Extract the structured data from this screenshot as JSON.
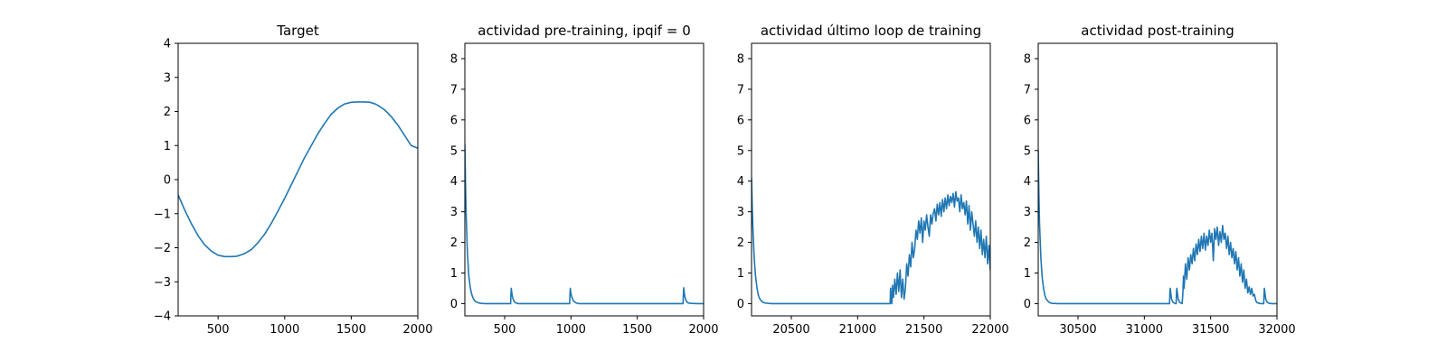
{
  "figure": {
    "background": "#ffffff",
    "line_color": "#1f77b4"
  },
  "chart_data": [
    {
      "type": "line",
      "title": "Target",
      "xlabel": "",
      "ylabel": "",
      "xlim": [
        200,
        2000
      ],
      "ylim": [
        -4,
        4
      ],
      "xticks": [
        500,
        1000,
        1500,
        2000
      ],
      "yticks": [
        -4,
        -3,
        -2,
        -1,
        0,
        1,
        2,
        3,
        4
      ],
      "grid": false,
      "series": [
        {
          "x": [
            200,
            250,
            300,
            350,
            400,
            450,
            500,
            550,
            600,
            640,
            680,
            700,
            750,
            800,
            850,
            900,
            950,
            1000,
            1050,
            1100,
            1150,
            1200,
            1250,
            1300,
            1350,
            1400,
            1450,
            1500,
            1550,
            1600,
            1640,
            1680,
            1700,
            1750,
            1800,
            1850,
            1900,
            1950,
            2000
          ],
          "y": [
            -0.45,
            -0.9,
            -1.3,
            -1.65,
            -1.92,
            -2.1,
            -2.22,
            -2.26,
            -2.26,
            -2.25,
            -2.2,
            -2.17,
            -2.05,
            -1.85,
            -1.6,
            -1.28,
            -0.92,
            -0.55,
            -0.15,
            0.25,
            0.65,
            1.0,
            1.35,
            1.65,
            1.92,
            2.1,
            2.22,
            2.27,
            2.28,
            2.28,
            2.27,
            2.22,
            2.18,
            2.05,
            1.85,
            1.6,
            1.3,
            1.0,
            0.92
          ]
        }
      ]
    },
    {
      "type": "line",
      "title": "actividad pre-training, ipqif = 0",
      "xlabel": "",
      "ylabel": "",
      "xlim": [
        200,
        2000
      ],
      "ylim": [
        -0.4,
        8.5
      ],
      "xticks": [
        500,
        1000,
        1500,
        2000
      ],
      "yticks": [
        0,
        1,
        2,
        3,
        4,
        5,
        6,
        7,
        8
      ],
      "grid": false,
      "series": [
        {
          "x": [
            200,
            205,
            210,
            215,
            220,
            230,
            240,
            250,
            260,
            270,
            280,
            300,
            320,
            350,
            400,
            450,
            500,
            545,
            548,
            550,
            555,
            560,
            570,
            580,
            600,
            650,
            700,
            800,
            900,
            990,
            993,
            995,
            1000,
            1010,
            1020,
            1040,
            1060,
            1100,
            1200,
            1300,
            1400,
            1500,
            1600,
            1700,
            1800,
            1845,
            1848,
            1850,
            1855,
            1860,
            1870,
            1880,
            1900,
            1950,
            2000
          ],
          "y": [
            5.2,
            3.9,
            2.9,
            2.2,
            1.6,
            0.9,
            0.55,
            0.33,
            0.2,
            0.12,
            0.07,
            0.03,
            0.01,
            0.0,
            0.0,
            0.0,
            0.0,
            0.0,
            0.35,
            0.5,
            0.32,
            0.2,
            0.08,
            0.03,
            0.0,
            0.0,
            0.0,
            0.0,
            0.0,
            0.0,
            0.35,
            0.5,
            0.32,
            0.17,
            0.08,
            0.02,
            0.0,
            0.0,
            0.0,
            0.0,
            0.0,
            0.0,
            0.0,
            0.0,
            0.0,
            0.0,
            0.35,
            0.52,
            0.33,
            0.2,
            0.08,
            0.03,
            0.01,
            0.0,
            0.0
          ]
        }
      ]
    },
    {
      "type": "line",
      "title": "actividad último loop de training",
      "xlabel": "",
      "ylabel": "",
      "xlim": [
        20200,
        22000
      ],
      "ylim": [
        -0.4,
        8.5
      ],
      "xticks": [
        20500,
        21000,
        21500,
        22000
      ],
      "yticks": [
        0,
        1,
        2,
        3,
        4,
        5,
        6,
        7,
        8
      ],
      "grid": false,
      "series": [
        {
          "x": [
            20200,
            20205,
            20210,
            20220,
            20230,
            20240,
            20250,
            20260,
            20280,
            20300,
            20350,
            20400,
            20600,
            20800,
            21000,
            21200,
            21240,
            21245,
            21248,
            21250,
            21258,
            21262,
            21270,
            21280,
            21290,
            21300,
            21310,
            21320,
            21330,
            21340,
            21350,
            21360,
            21370,
            21380,
            21390,
            21400,
            21410,
            21420,
            21430,
            21440,
            21450,
            21460,
            21470,
            21480,
            21490,
            21500,
            21510,
            21520,
            21530,
            21540,
            21550,
            21560,
            21570,
            21580,
            21590,
            21600,
            21610,
            21620,
            21630,
            21640,
            21650,
            21660,
            21670,
            21680,
            21690,
            21700,
            21710,
            21720,
            21730,
            21740,
            21750,
            21760,
            21770,
            21780,
            21790,
            21800,
            21810,
            21820,
            21830,
            21840,
            21850,
            21860,
            21870,
            21880,
            21890,
            21900,
            21910,
            21920,
            21930,
            21940,
            21950,
            21960,
            21970,
            21980,
            21990,
            22000
          ],
          "y": [
            4.1,
            3.2,
            2.5,
            1.5,
            0.9,
            0.55,
            0.3,
            0.17,
            0.06,
            0.02,
            0.0,
            0.0,
            0.0,
            0.0,
            0.0,
            0.0,
            0.0,
            0.0,
            0.5,
            0.2,
            0.0,
            0.6,
            0.2,
            0.8,
            0.3,
            1.0,
            0.4,
            1.1,
            0.2,
            0.8,
            0.15,
            0.5,
            1.3,
            0.9,
            1.6,
            1.2,
            2.0,
            1.5,
            1.8,
            2.4,
            2.1,
            2.7,
            2.3,
            2.8,
            2.0,
            2.7,
            2.4,
            2.9,
            2.5,
            2.2,
            2.9,
            2.6,
            2.95,
            3.1,
            2.7,
            3.25,
            2.9,
            3.3,
            2.85,
            3.4,
            3.0,
            3.45,
            3.1,
            3.55,
            3.2,
            3.5,
            3.3,
            3.6,
            3.15,
            3.65,
            3.35,
            3.45,
            3.0,
            3.55,
            3.1,
            3.3,
            2.9,
            3.35,
            2.6,
            3.2,
            2.4,
            3.0,
            2.6,
            2.2,
            2.7,
            2.0,
            2.5,
            1.8,
            2.4,
            1.6,
            2.1,
            1.5,
            2.2,
            1.3,
            1.9,
            1.1
          ]
        }
      ]
    },
    {
      "type": "line",
      "title": "actividad post-training",
      "xlabel": "",
      "ylabel": "",
      "xlim": [
        30200,
        32000
      ],
      "ylim": [
        -0.4,
        8.5
      ],
      "xticks": [
        30500,
        31000,
        31500,
        32000
      ],
      "yticks": [
        0,
        1,
        2,
        3,
        4,
        5,
        6,
        7,
        8
      ],
      "grid": false,
      "series": [
        {
          "x": [
            30200,
            30205,
            30210,
            30220,
            30230,
            30240,
            30250,
            30260,
            30280,
            30300,
            30350,
            30400,
            30600,
            30800,
            31000,
            31150,
            31190,
            31193,
            31195,
            31205,
            31215,
            31225,
            31235,
            31240,
            31243,
            31245,
            31255,
            31265,
            31275,
            31285,
            31290,
            31295,
            31300,
            31310,
            31320,
            31330,
            31340,
            31350,
            31360,
            31370,
            31380,
            31390,
            31400,
            31410,
            31420,
            31430,
            31440,
            31450,
            31460,
            31470,
            31480,
            31490,
            31500,
            31510,
            31520,
            31530,
            31540,
            31550,
            31560,
            31570,
            31580,
            31590,
            31600,
            31610,
            31620,
            31630,
            31640,
            31650,
            31660,
            31670,
            31680,
            31690,
            31700,
            31710,
            31720,
            31730,
            31740,
            31750,
            31760,
            31770,
            31780,
            31790,
            31800,
            31810,
            31820,
            31830,
            31840,
            31850,
            31880,
            31900,
            31903,
            31905,
            31915,
            31925,
            31940,
            31960,
            31980,
            32000
          ],
          "y": [
            5.0,
            3.6,
            2.6,
            1.5,
            0.85,
            0.5,
            0.28,
            0.15,
            0.05,
            0.01,
            0.0,
            0.0,
            0.0,
            0.0,
            0.0,
            0.0,
            0.0,
            0.4,
            0.5,
            0.15,
            0.05,
            0.02,
            0.0,
            0.0,
            0.4,
            0.5,
            0.15,
            0.05,
            0.02,
            0.0,
            0.3,
            0.9,
            0.5,
            1.3,
            0.8,
            1.5,
            1.1,
            1.6,
            1.3,
            1.8,
            1.4,
            1.95,
            1.6,
            2.1,
            1.7,
            2.2,
            1.8,
            2.3,
            1.75,
            2.2,
            1.9,
            2.4,
            2.0,
            2.3,
            1.4,
            2.45,
            2.1,
            2.5,
            1.9,
            2.35,
            2.0,
            2.55,
            2.1,
            2.3,
            1.8,
            2.2,
            1.6,
            2.0,
            1.5,
            1.8,
            1.3,
            1.7,
            1.1,
            1.5,
            0.9,
            1.3,
            0.7,
            1.1,
            0.5,
            0.8,
            0.35,
            0.55,
            0.3,
            0.5,
            0.25,
            0.3,
            0.1,
            0.03,
            0.0,
            0.0,
            0.35,
            0.5,
            0.15,
            0.05,
            0.01,
            0.0,
            0.0,
            0.0
          ]
        }
      ]
    }
  ]
}
